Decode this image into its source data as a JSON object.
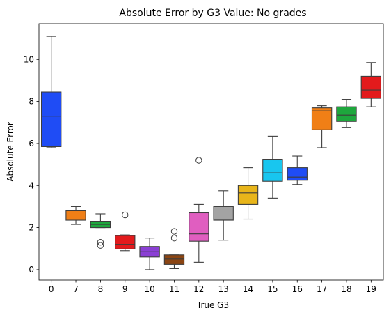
{
  "chart_data": {
    "type": "box",
    "title": "Absolute Error by G3 Value: No grades",
    "xlabel": "True G3",
    "ylabel": "Absolute Error",
    "ylim": [
      -0.5,
      11.7
    ],
    "yticks": [
      0,
      2,
      4,
      6,
      8,
      10
    ],
    "grid": false,
    "legend": "none",
    "categories": [
      "0",
      "7",
      "8",
      "9",
      "10",
      "11",
      "12",
      "13",
      "14",
      "15",
      "16",
      "17",
      "18",
      "19"
    ],
    "boxes": [
      {
        "category": "0",
        "whisker_low": 5.8,
        "q1": 5.85,
        "median": 7.3,
        "q3": 8.45,
        "whisker_high": 11.1,
        "outliers": [],
        "color": "#1f4cf5"
      },
      {
        "category": "7",
        "whisker_low": 2.15,
        "q1": 2.35,
        "median": 2.6,
        "q3": 2.8,
        "whisker_high": 3.0,
        "outliers": [],
        "color": "#f07f16"
      },
      {
        "category": "8",
        "whisker_low": 2.0,
        "q1": 2.0,
        "median": 2.15,
        "q3": 2.3,
        "whisker_high": 2.65,
        "outliers": [
          1.15,
          1.3
        ],
        "color": "#1ea73d"
      },
      {
        "category": "9",
        "whisker_low": 0.9,
        "q1": 0.98,
        "median": 1.2,
        "q3": 1.62,
        "whisker_high": 1.65,
        "outliers": [
          2.6
        ],
        "color": "#e31a1c"
      },
      {
        "category": "10",
        "whisker_low": 0.0,
        "q1": 0.6,
        "median": 0.85,
        "q3": 1.1,
        "whisker_high": 1.5,
        "outliers": [],
        "color": "#8a3fd4"
      },
      {
        "category": "11",
        "whisker_low": 0.05,
        "q1": 0.25,
        "median": 0.5,
        "q3": 0.7,
        "whisker_high": 0.7,
        "outliers": [
          1.5,
          1.82
        ],
        "color": "#8b4513"
      },
      {
        "category": "12",
        "whisker_low": 0.35,
        "q1": 1.35,
        "median": 1.7,
        "q3": 2.7,
        "whisker_high": 3.1,
        "outliers": [
          5.2
        ],
        "color": "#e05ec0"
      },
      {
        "category": "13",
        "whisker_low": 1.4,
        "q1": 2.35,
        "median": 2.4,
        "q3": 3.0,
        "whisker_high": 3.75,
        "outliers": [],
        "color": "#a3a3a3"
      },
      {
        "category": "14",
        "whisker_low": 2.4,
        "q1": 3.1,
        "median": 3.65,
        "q3": 4.0,
        "whisker_high": 4.85,
        "outliers": [],
        "color": "#e8b51a"
      },
      {
        "category": "15",
        "whisker_low": 3.4,
        "q1": 4.2,
        "median": 4.6,
        "q3": 5.25,
        "whisker_high": 6.35,
        "outliers": [],
        "color": "#18c6ef"
      },
      {
        "category": "16",
        "whisker_low": 4.05,
        "q1": 4.25,
        "median": 4.4,
        "q3": 4.85,
        "whisker_high": 5.4,
        "outliers": [],
        "color": "#1f4cf5"
      },
      {
        "category": "17",
        "whisker_low": 5.8,
        "q1": 6.65,
        "median": 7.55,
        "q3": 7.7,
        "whisker_high": 7.8,
        "outliers": [],
        "color": "#f07f16"
      },
      {
        "category": "18",
        "whisker_low": 6.75,
        "q1": 7.05,
        "median": 7.35,
        "q3": 7.75,
        "whisker_high": 8.1,
        "outliers": [],
        "color": "#1ea73d"
      },
      {
        "category": "19",
        "whisker_low": 7.75,
        "q1": 8.15,
        "median": 8.55,
        "q3": 9.2,
        "whisker_high": 9.85,
        "outliers": [],
        "color": "#e31a1c"
      }
    ]
  }
}
